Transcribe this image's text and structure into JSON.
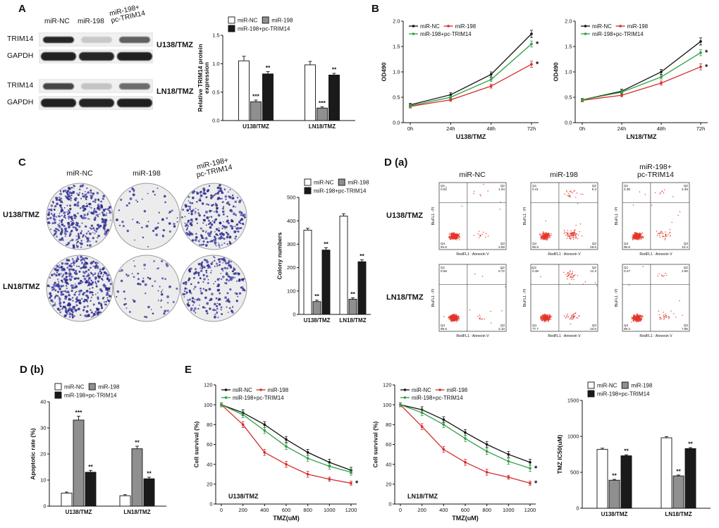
{
  "panels": {
    "A": "A",
    "B": "B",
    "C": "C",
    "Da": "D (a)",
    "Db": "D (b)",
    "E": "E"
  },
  "panelA": {
    "lanes": [
      "miR-NC",
      "miR-198",
      "miR-198+\npc-TRIM14"
    ],
    "rows": [
      {
        "name": "TRIM14",
        "bands": [
          0.92,
          0.18,
          0.65
        ],
        "h": 9,
        "w": 44
      },
      {
        "name": "GAPDH",
        "bands": [
          0.95,
          0.92,
          0.95
        ],
        "h": 12,
        "w": 50
      },
      {
        "name": "TRIM14",
        "bands": [
          0.78,
          0.2,
          0.6
        ],
        "h": 9,
        "w": 44
      },
      {
        "name": "GAPDH",
        "bands": [
          0.95,
          0.93,
          0.95
        ],
        "h": 12,
        "w": 50
      }
    ],
    "cell_lines": [
      "U138/TMZ",
      "LN18/TMZ"
    ]
  },
  "panelC": {
    "cols": [
      "miR-NC",
      "miR-198",
      "miR-198+\npc-TRIM14"
    ],
    "rows": [
      "U138/TMZ",
      "LN18/TMZ"
    ],
    "colonies": [
      [
        360,
        55,
        275
      ],
      [
        420,
        65,
        225
      ]
    ]
  },
  "panelDa": {
    "cols": [
      "miR-NC",
      "miR-198",
      "miR-198+\npc-TRIM14"
    ],
    "rows": [
      "U138/TMZ",
      "LN18/TMZ"
    ],
    "xlabel": "RedFL1 : Annexin V",
    "ylabel": "BluFL1 : PI",
    "quad_names": [
      "Q1",
      "Q2",
      "Q3",
      "Q4"
    ],
    "plots": [
      {
        "q": [
          "0.52",
          "1.34",
          "3.58",
          "94.6"
        ]
      },
      {
        "q": [
          "0.41",
          "6.2",
          "26.8",
          "66.6"
        ]
      },
      {
        "q": [
          "0.36",
          "2.49",
          "10.4",
          "86.8"
        ]
      },
      {
        "q": [
          "0.55",
          "0.72",
          "3.10",
          "95.6"
        ]
      },
      {
        "q": [
          "0.38",
          "11.3",
          "10.6",
          "77.7"
        ]
      },
      {
        "q": [
          "0.27",
          "2.60",
          "7.86",
          "89.3"
        ]
      }
    ]
  },
  "chart_data": [
    {
      "id": "A_bar",
      "type": "bar",
      "ml": 44,
      "ylabel": "Relative TRIM14 protein\nexpression",
      "ylim": [
        0,
        1.5
      ],
      "yticks": [
        0,
        0.5,
        1,
        1.5
      ],
      "ydec": 1,
      "categories": [
        "U138/TMZ",
        "LN18/TMZ"
      ],
      "series": [
        {
          "name": "miR-NC",
          "fill": "#ffffff",
          "values": [
            1.05,
            0.98
          ],
          "errors": [
            0.08,
            0.06
          ],
          "sig": [
            "",
            ""
          ]
        },
        {
          "name": "miR-198",
          "fill": "#8f8f8f",
          "values": [
            0.33,
            0.22
          ],
          "errors": [
            0.03,
            0.02
          ],
          "sig": [
            "***",
            "***"
          ]
        },
        {
          "name": "miR-198+pc-TRIM14",
          "fill": "#1a1a1a",
          "values": [
            0.82,
            0.8
          ],
          "errors": [
            0.04,
            0.03
          ],
          "sig": [
            "**",
            "**"
          ]
        }
      ],
      "legend_rows": [
        [
          0,
          1
        ],
        [
          2
        ]
      ]
    },
    {
      "id": "B1",
      "type": "line",
      "ml": 34,
      "ylabel": "OD490",
      "ylim": [
        0,
        2
      ],
      "yticks": [
        0,
        0.5,
        1,
        1.5,
        2
      ],
      "ydec": 1,
      "xticklabels": [
        "0h",
        "24h",
        "48h",
        "72h"
      ],
      "xlabel": "U138/TMZ",
      "series": [
        {
          "name": "miR-NC",
          "color": "#111111",
          "values": [
            0.35,
            0.55,
            0.95,
            1.75
          ],
          "errors": [
            0.03,
            0.04,
            0.05,
            0.07
          ],
          "end": ""
        },
        {
          "name": "miR-198",
          "color": "#d62b2b",
          "values": [
            0.32,
            0.45,
            0.72,
            1.15
          ],
          "errors": [
            0.03,
            0.03,
            0.04,
            0.06
          ],
          "end": "*"
        },
        {
          "name": "miR-198+pc-TRIM14",
          "color": "#2f9e44",
          "values": [
            0.33,
            0.5,
            0.85,
            1.55
          ],
          "errors": [
            0.03,
            0.03,
            0.04,
            0.06
          ],
          "end": "*"
        }
      ],
      "legend_rows": [
        [
          0,
          1
        ],
        [
          2
        ]
      ]
    },
    {
      "id": "B2",
      "type": "line",
      "ml": 34,
      "ylabel": "OD490",
      "ylim": [
        0,
        2
      ],
      "yticks": [
        0,
        0.5,
        1,
        1.5,
        2
      ],
      "ydec": 1,
      "xticklabels": [
        "0h",
        "24h",
        "48h",
        "72h"
      ],
      "xlabel": "LN18/TMZ",
      "series": [
        {
          "name": "miR-NC",
          "color": "#111111",
          "values": [
            0.45,
            0.62,
            1.0,
            1.6
          ],
          "errors": [
            0.03,
            0.04,
            0.05,
            0.07
          ],
          "end": ""
        },
        {
          "name": "miR-198",
          "color": "#d62b2b",
          "values": [
            0.44,
            0.54,
            0.78,
            1.1
          ],
          "errors": [
            0.03,
            0.03,
            0.04,
            0.06
          ],
          "end": "*"
        },
        {
          "name": "miR-198+pc-TRIM14",
          "color": "#2f9e44",
          "values": [
            0.45,
            0.6,
            0.9,
            1.38
          ],
          "errors": [
            0.03,
            0.03,
            0.04,
            0.06
          ],
          "end": "*"
        }
      ],
      "legend_rows": [
        [
          0,
          1
        ],
        [
          2
        ]
      ]
    },
    {
      "id": "C_bar",
      "type": "bar",
      "ml": 34,
      "bw": 11,
      "ylabel": "Colony numbers",
      "ylim": [
        0,
        500
      ],
      "yticks": [
        0,
        100,
        200,
        300,
        400,
        500
      ],
      "ydec": 0,
      "categories": [
        "U138/TMZ",
        "LN18/TMZ"
      ],
      "series": [
        {
          "name": "miR-NC",
          "fill": "#ffffff",
          "values": [
            360,
            420
          ],
          "errors": [
            8,
            10
          ],
          "sig": [
            "",
            ""
          ]
        },
        {
          "name": "miR-198",
          "fill": "#8f8f8f",
          "values": [
            55,
            65
          ],
          "errors": [
            6,
            6
          ],
          "sig": [
            "**",
            "**"
          ]
        },
        {
          "name": "miR-198+pc-TRIM14",
          "fill": "#1a1a1a",
          "values": [
            275,
            225
          ],
          "errors": [
            10,
            8
          ],
          "sig": [
            "**",
            "**"
          ]
        }
      ],
      "legend_rows": [
        [
          0,
          1
        ],
        [
          2
        ]
      ]
    },
    {
      "id": "Db_bar",
      "type": "bar",
      "ml": 36,
      "ylabel": "Apoptotic rate (%)",
      "ylim": [
        0,
        40
      ],
      "yticks": [
        0,
        10,
        20,
        30,
        40
      ],
      "ydec": 0,
      "categories": [
        "U138/TMZ",
        "LN18/TMZ"
      ],
      "series": [
        {
          "name": "miR-NC",
          "fill": "#ffffff",
          "values": [
            5,
            4
          ],
          "errors": [
            0.4,
            0.4
          ],
          "sig": [
            "",
            ""
          ]
        },
        {
          "name": "miR-198",
          "fill": "#8f8f8f",
          "values": [
            33,
            22
          ],
          "errors": [
            1.5,
            1.0
          ],
          "sig": [
            "***",
            "**"
          ]
        },
        {
          "name": "miR-198+pc-TRIM14",
          "fill": "#1a1a1a",
          "values": [
            13,
            10.5
          ],
          "errors": [
            0.7,
            0.6
          ],
          "sig": [
            "**",
            "**"
          ]
        }
      ],
      "legend_rows": [
        [
          0,
          1
        ],
        [
          2
        ]
      ]
    },
    {
      "id": "E1",
      "type": "line",
      "ml": 38,
      "ylabel": "Cell survival (%)",
      "ylim": [
        0,
        120
      ],
      "yticks": [
        0,
        20,
        40,
        60,
        80,
        100,
        120
      ],
      "ydec": 0,
      "xticklabels": [
        "0",
        "200",
        "400",
        "600",
        "800",
        "1000",
        "1200"
      ],
      "xlabel": "TMZ(uM)",
      "inner": "U138/TMZ",
      "xpad": 8,
      "series": [
        {
          "name": "miR-NC",
          "color": "#111111",
          "values": [
            100,
            92,
            80,
            65,
            52,
            42,
            34
          ],
          "errors": [
            2,
            3,
            3,
            3,
            3,
            3,
            3
          ],
          "end": ""
        },
        {
          "name": "miR-198",
          "color": "#d62b2b",
          "values": [
            100,
            80,
            52,
            40,
            30,
            25,
            21
          ],
          "errors": [
            2,
            3,
            3,
            3,
            3,
            2,
            2
          ],
          "end": "*"
        },
        {
          "name": "miR-198+pc-TRIM14",
          "color": "#2f9e44",
          "values": [
            100,
            90,
            74,
            58,
            46,
            38,
            32
          ],
          "errors": [
            2,
            3,
            3,
            3,
            3,
            3,
            3
          ],
          "end": ""
        }
      ],
      "legend_rows": [
        [
          0,
          1
        ],
        [
          2
        ]
      ]
    },
    {
      "id": "E2",
      "type": "line",
      "ml": 38,
      "ylabel": "Cell survival (%)",
      "ylim": [
        0,
        120
      ],
      "yticks": [
        0,
        20,
        40,
        60,
        80,
        100,
        120
      ],
      "ydec": 0,
      "xticklabels": [
        "0",
        "200",
        "400",
        "600",
        "800",
        "1000",
        "1200"
      ],
      "xlabel": "TMZ(uM)",
      "inner": "LN18/TMZ",
      "xpad": 8,
      "series": [
        {
          "name": "miR-NC",
          "color": "#111111",
          "values": [
            100,
            95,
            85,
            72,
            60,
            50,
            42
          ],
          "errors": [
            2,
            3,
            3,
            3,
            3,
            3,
            3
          ],
          "end": ""
        },
        {
          "name": "miR-198",
          "color": "#d62b2b",
          "values": [
            100,
            78,
            55,
            42,
            32,
            27,
            21
          ],
          "errors": [
            2,
            3,
            3,
            3,
            3,
            2,
            2
          ],
          "end": "*"
        },
        {
          "name": "miR-198+pc-TRIM14",
          "color": "#2f9e44",
          "values": [
            100,
            92,
            80,
            66,
            53,
            43,
            36
          ],
          "errors": [
            2,
            3,
            3,
            3,
            3,
            3,
            3
          ],
          "end": "*"
        }
      ],
      "legend_rows": [
        [
          0,
          1
        ],
        [
          2
        ]
      ]
    },
    {
      "id": "E3",
      "type": "bar",
      "ml": 42,
      "ylabel": "TMZ IC50(uM)",
      "ylim": [
        0,
        1500
      ],
      "yticks": [
        0,
        500,
        1000,
        1500
      ],
      "ydec": 0,
      "categories": [
        "U138/TMZ",
        "LN18/TMZ"
      ],
      "series": [
        {
          "name": "miR-NC",
          "fill": "#ffffff",
          "values": [
            820,
            980
          ],
          "errors": [
            15,
            15
          ],
          "sig": [
            "",
            ""
          ]
        },
        {
          "name": "miR-198",
          "fill": "#8f8f8f",
          "values": [
            390,
            450
          ],
          "errors": [
            12,
            12
          ],
          "sig": [
            "**",
            "**"
          ]
        },
        {
          "name": "miR-198+pc-TRIM14",
          "fill": "#1a1a1a",
          "values": [
            730,
            830
          ],
          "errors": [
            14,
            14
          ],
          "sig": [
            "**",
            "**"
          ]
        }
      ],
      "legend_rows": [
        [
          0,
          1
        ],
        [
          2
        ]
      ]
    }
  ]
}
